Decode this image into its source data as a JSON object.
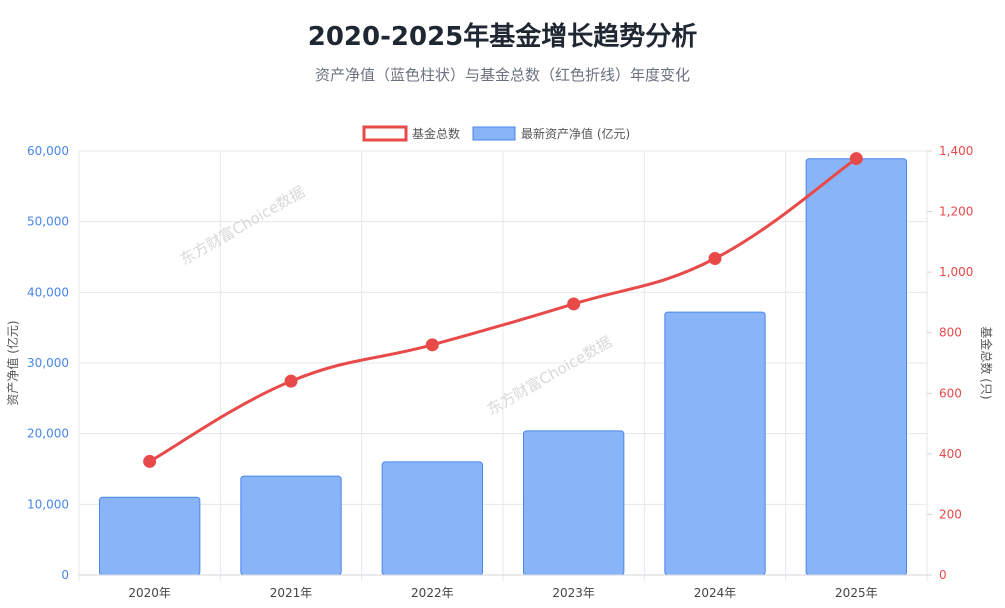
{
  "chart_data": {
    "type": "bar",
    "title": "2020-2025年基金增长趋势分析",
    "subtitle": "资产净值（蓝色柱状）与基金总数（红色折线）年度变化",
    "categories": [
      "2020年",
      "2021年",
      "2022年",
      "2023年",
      "2024年",
      "2025年"
    ],
    "series": [
      {
        "name": "基金总数",
        "type": "line",
        "axis": "right",
        "values": [
          375,
          640,
          760,
          895,
          1045,
          1375
        ],
        "color": "#e84a4a"
      },
      {
        "name": "最新资产净值 (亿元)",
        "type": "bar",
        "axis": "left",
        "values": [
          11000,
          14000,
          16000,
          20400,
          37200,
          58900
        ],
        "color": "#8ab4f8",
        "border_color": "#4a86e8"
      }
    ],
    "y_left": {
      "label": "资产净值 (亿元)",
      "ylim": [
        0,
        60000
      ],
      "ticks": [
        "0",
        "10,000",
        "20,000",
        "30,000",
        "40,000",
        "50,000",
        "60,000"
      ],
      "tick_color": "#4a86e8"
    },
    "y_right": {
      "label": "基金总数 (只)",
      "ylim": [
        0,
        1400
      ],
      "ticks": [
        "0",
        "200",
        "400",
        "600",
        "800",
        "1,000",
        "1,200",
        "1,400"
      ],
      "tick_color": "#e84a4a"
    },
    "grid": true,
    "legend": "top-center",
    "watermark": "东方财富Choice数据"
  }
}
